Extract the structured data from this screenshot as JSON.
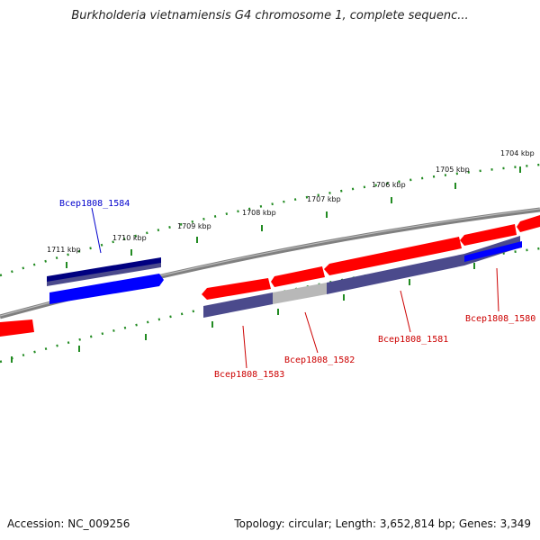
{
  "title": "Burkholderia vietnamiensis G4 chromosome 1, complete sequenc...",
  "footer": {
    "accession": "Accession: NC_009256",
    "topology": "Topology: circular; Length: 3,652,814 bp; Genes: 3,349"
  },
  "scale_labels": [
    "1711 kbp",
    "1710 kbp",
    "1709 kbp",
    "1708 kbp",
    "1707 kbp",
    "1706 kbp",
    "1705 kbp",
    "1704 kbp"
  ],
  "gene_labels": [
    {
      "text": "Bcep1808_1584",
      "color": "#0000cc"
    },
    {
      "text": "Bcep1808_1583",
      "color": "#cc0000"
    },
    {
      "text": "Bcep1808_1582",
      "color": "#cc0000"
    },
    {
      "text": "Bcep1808_1581",
      "color": "#cc0000"
    },
    {
      "text": "Bcep1808_1580",
      "color": "#cc0000"
    }
  ],
  "colors": {
    "forward_gene": "#ff0000",
    "reverse_gene": "#0000ff",
    "backbone": "#808080",
    "ticks": "#228b22",
    "cds_outer": "#000080",
    "cds_purple": "#4b4a8c",
    "cds_gray": "#b8b8b8"
  }
}
